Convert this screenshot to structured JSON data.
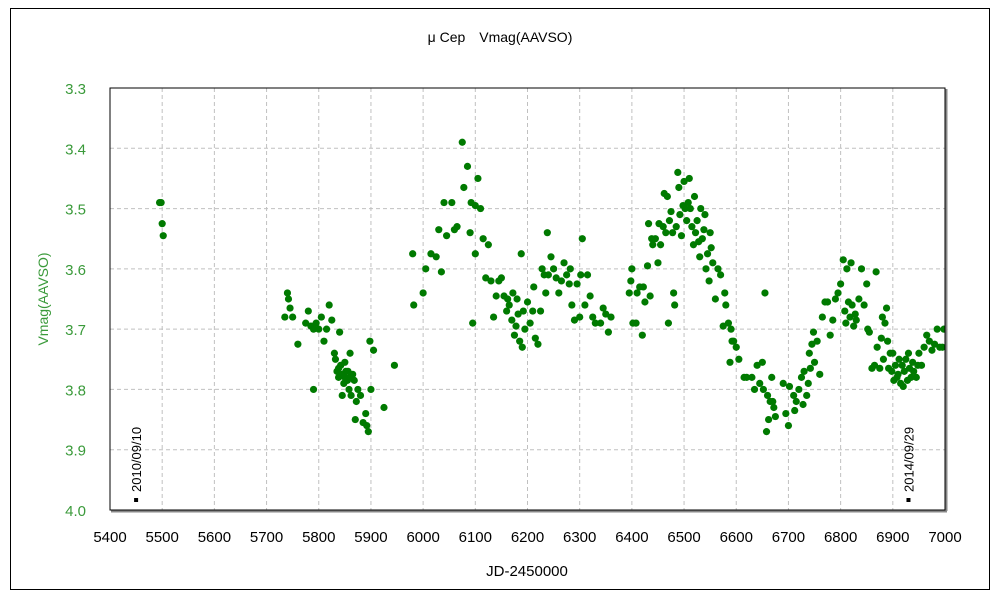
{
  "chart_data": {
    "type": "scatter",
    "title": "μ Cep　Vmag(AAVSO)",
    "xlabel": "JD-2450000",
    "ylabel": "Vmag(AAVSO)",
    "xlim": [
      5400,
      7000
    ],
    "ylim": [
      3.3,
      4.0
    ],
    "y_inverted": true,
    "grid": true,
    "x_ticks": [
      "5400",
      "5500",
      "5600",
      "5700",
      "5800",
      "5900",
      "6000",
      "6100",
      "6200",
      "6300",
      "6400",
      "6500",
      "6600",
      "6700",
      "6800",
      "6900",
      "7000"
    ],
    "y_ticks": [
      "3.3",
      "3.4",
      "3.5",
      "3.6",
      "3.7",
      "3.8",
      "3.9",
      "4.0"
    ],
    "colors": {
      "points": "#007a00",
      "y_axis_text": "#3a9a3a",
      "grid": "#c0c0c0"
    },
    "annotations": [
      {
        "x": 5450,
        "text": "2010/09/10"
      },
      {
        "x": 6930,
        "text": "2014/09/29"
      }
    ],
    "points": [
      [
        5495,
        3.49
      ],
      [
        5498,
        3.49
      ],
      [
        5500,
        3.525
      ],
      [
        5502,
        3.545
      ],
      [
        5735,
        3.68
      ],
      [
        5740,
        3.64
      ],
      [
        5742,
        3.65
      ],
      [
        5745,
        3.665
      ],
      [
        5750,
        3.68
      ],
      [
        5760,
        3.725
      ],
      [
        5775,
        3.69
      ],
      [
        5780,
        3.67
      ],
      [
        5785,
        3.695
      ],
      [
        5790,
        3.7
      ],
      [
        5795,
        3.69
      ],
      [
        5790,
        3.8
      ],
      [
        5800,
        3.7
      ],
      [
        5805,
        3.68
      ],
      [
        5810,
        3.72
      ],
      [
        5815,
        3.7
      ],
      [
        5820,
        3.66
      ],
      [
        5825,
        3.685
      ],
      [
        5830,
        3.74
      ],
      [
        5832,
        3.75
      ],
      [
        5835,
        3.77
      ],
      [
        5838,
        3.78
      ],
      [
        5840,
        3.705
      ],
      [
        5842,
        3.76
      ],
      [
        5845,
        3.775
      ],
      [
        5848,
        3.79
      ],
      [
        5850,
        3.755
      ],
      [
        5852,
        3.77
      ],
      [
        5855,
        3.785
      ],
      [
        5858,
        3.8
      ],
      [
        5860,
        3.78
      ],
      [
        5862,
        3.81
      ],
      [
        5865,
        3.775
      ],
      [
        5868,
        3.785
      ],
      [
        5870,
        3.85
      ],
      [
        5872,
        3.82
      ],
      [
        5875,
        3.8
      ],
      [
        5880,
        3.81
      ],
      [
        5885,
        3.855
      ],
      [
        5890,
        3.84
      ],
      [
        5892,
        3.86
      ],
      [
        5895,
        3.87
      ],
      [
        5898,
        3.72
      ],
      [
        5900,
        3.8
      ],
      [
        5905,
        3.735
      ],
      [
        5925,
        3.83
      ],
      [
        5945,
        3.76
      ],
      [
        5860,
        3.74
      ],
      [
        5845,
        3.81
      ],
      [
        5838,
        3.765
      ],
      [
        5850,
        3.78
      ],
      [
        5856,
        3.77
      ],
      [
        5980,
        3.575
      ],
      [
        5982,
        3.66
      ],
      [
        6000,
        3.64
      ],
      [
        6005,
        3.6
      ],
      [
        6015,
        3.575
      ],
      [
        6025,
        3.58
      ],
      [
        6030,
        3.535
      ],
      [
        6035,
        3.605
      ],
      [
        6040,
        3.49
      ],
      [
        6045,
        3.545
      ],
      [
        6055,
        3.49
      ],
      [
        6060,
        3.535
      ],
      [
        6065,
        3.53
      ],
      [
        6075,
        3.39
      ],
      [
        6078,
        3.465
      ],
      [
        6085,
        3.43
      ],
      [
        6090,
        3.54
      ],
      [
        6092,
        3.49
      ],
      [
        6095,
        3.69
      ],
      [
        6100,
        3.495
      ],
      [
        6105,
        3.45
      ],
      [
        6110,
        3.5
      ],
      [
        6115,
        3.55
      ],
      [
        6120,
        3.615
      ],
      [
        6125,
        3.56
      ],
      [
        6100,
        3.575
      ],
      [
        6130,
        3.62
      ],
      [
        6135,
        3.68
      ],
      [
        6140,
        3.645
      ],
      [
        6145,
        3.62
      ],
      [
        6150,
        3.615
      ],
      [
        6155,
        3.645
      ],
      [
        6160,
        3.67
      ],
      [
        6162,
        3.65
      ],
      [
        6165,
        3.66
      ],
      [
        6170,
        3.685
      ],
      [
        6172,
        3.64
      ],
      [
        6175,
        3.71
      ],
      [
        6178,
        3.695
      ],
      [
        6180,
        3.65
      ],
      [
        6182,
        3.675
      ],
      [
        6185,
        3.72
      ],
      [
        6188,
        3.575
      ],
      [
        6190,
        3.73
      ],
      [
        6192,
        3.67
      ],
      [
        6195,
        3.7
      ],
      [
        6200,
        3.655
      ],
      [
        6205,
        3.69
      ],
      [
        6210,
        3.67
      ],
      [
        6212,
        3.63
      ],
      [
        6215,
        3.715
      ],
      [
        6220,
        3.725
      ],
      [
        6225,
        3.67
      ],
      [
        6228,
        3.6
      ],
      [
        6232,
        3.61
      ],
      [
        6235,
        3.64
      ],
      [
        6238,
        3.54
      ],
      [
        6240,
        3.61
      ],
      [
        6245,
        3.58
      ],
      [
        6250,
        3.6
      ],
      [
        6255,
        3.615
      ],
      [
        6260,
        3.64
      ],
      [
        6265,
        3.62
      ],
      [
        6270,
        3.59
      ],
      [
        6275,
        3.61
      ],
      [
        6280,
        3.625
      ],
      [
        6282,
        3.6
      ],
      [
        6285,
        3.66
      ],
      [
        6290,
        3.685
      ],
      [
        6295,
        3.625
      ],
      [
        6300,
        3.68
      ],
      [
        6302,
        3.61
      ],
      [
        6305,
        3.55
      ],
      [
        6310,
        3.66
      ],
      [
        6315,
        3.61
      ],
      [
        6320,
        3.645
      ],
      [
        6325,
        3.68
      ],
      [
        6330,
        3.69
      ],
      [
        6340,
        3.69
      ],
      [
        6345,
        3.665
      ],
      [
        6350,
        3.675
      ],
      [
        6355,
        3.705
      ],
      [
        6360,
        3.68
      ],
      [
        6395,
        3.64
      ],
      [
        6398,
        3.62
      ],
      [
        6400,
        3.6
      ],
      [
        6402,
        3.69
      ],
      [
        6408,
        3.69
      ],
      [
        6410,
        3.64
      ],
      [
        6415,
        3.63
      ],
      [
        6420,
        3.71
      ],
      [
        6422,
        3.63
      ],
      [
        6425,
        3.655
      ],
      [
        6430,
        3.595
      ],
      [
        6432,
        3.525
      ],
      [
        6435,
        3.645
      ],
      [
        6438,
        3.55
      ],
      [
        6440,
        3.56
      ],
      [
        6445,
        3.55
      ],
      [
        6450,
        3.59
      ],
      [
        6452,
        3.525
      ],
      [
        6455,
        3.56
      ],
      [
        6460,
        3.53
      ],
      [
        6462,
        3.475
      ],
      [
        6465,
        3.54
      ],
      [
        6468,
        3.48
      ],
      [
        6470,
        3.69
      ],
      [
        6472,
        3.52
      ],
      [
        6475,
        3.505
      ],
      [
        6478,
        3.54
      ],
      [
        6480,
        3.64
      ],
      [
        6482,
        3.66
      ],
      [
        6485,
        3.53
      ],
      [
        6488,
        3.44
      ],
      [
        6490,
        3.465
      ],
      [
        6492,
        3.51
      ],
      [
        6495,
        3.545
      ],
      [
        6498,
        3.495
      ],
      [
        6500,
        3.455
      ],
      [
        6502,
        3.5
      ],
      [
        6505,
        3.52
      ],
      [
        6508,
        3.49
      ],
      [
        6510,
        3.45
      ],
      [
        6512,
        3.5
      ],
      [
        6515,
        3.53
      ],
      [
        6518,
        3.56
      ],
      [
        6520,
        3.48
      ],
      [
        6522,
        3.54
      ],
      [
        6525,
        3.52
      ],
      [
        6528,
        3.555
      ],
      [
        6530,
        3.58
      ],
      [
        6532,
        3.5
      ],
      [
        6535,
        3.55
      ],
      [
        6538,
        3.535
      ],
      [
        6540,
        3.51
      ],
      [
        6542,
        3.6
      ],
      [
        6545,
        3.575
      ],
      [
        6548,
        3.62
      ],
      [
        6550,
        3.54
      ],
      [
        6552,
        3.565
      ],
      [
        6555,
        3.59
      ],
      [
        6560,
        3.65
      ],
      [
        6565,
        3.6
      ],
      [
        6570,
        3.61
      ],
      [
        6575,
        3.695
      ],
      [
        6578,
        3.64
      ],
      [
        6580,
        3.66
      ],
      [
        6585,
        3.69
      ],
      [
        6588,
        3.755
      ],
      [
        6590,
        3.7
      ],
      [
        6592,
        3.72
      ],
      [
        6595,
        3.72
      ],
      [
        6600,
        3.73
      ],
      [
        6605,
        3.75
      ],
      [
        6615,
        3.78
      ],
      [
        6620,
        3.78
      ],
      [
        6630,
        3.78
      ],
      [
        6635,
        3.8
      ],
      [
        6640,
        3.76
      ],
      [
        6645,
        3.79
      ],
      [
        6650,
        3.755
      ],
      [
        6652,
        3.8
      ],
      [
        6655,
        3.64
      ],
      [
        6658,
        3.87
      ],
      [
        6660,
        3.81
      ],
      [
        6662,
        3.85
      ],
      [
        6665,
        3.82
      ],
      [
        6668,
        3.78
      ],
      [
        6670,
        3.82
      ],
      [
        6672,
        3.83
      ],
      [
        6675,
        3.845
      ],
      [
        6690,
        3.79
      ],
      [
        6695,
        3.84
      ],
      [
        6700,
        3.86
      ],
      [
        6702,
        3.795
      ],
      [
        6710,
        3.81
      ],
      [
        6712,
        3.835
      ],
      [
        6715,
        3.82
      ],
      [
        6720,
        3.8
      ],
      [
        6725,
        3.78
      ],
      [
        6728,
        3.825
      ],
      [
        6730,
        3.77
      ],
      [
        6735,
        3.81
      ],
      [
        6738,
        3.79
      ],
      [
        6740,
        3.74
      ],
      [
        6742,
        3.765
      ],
      [
        6745,
        3.725
      ],
      [
        6748,
        3.705
      ],
      [
        6750,
        3.755
      ],
      [
        6755,
        3.72
      ],
      [
        6760,
        3.775
      ],
      [
        6765,
        3.68
      ],
      [
        6770,
        3.655
      ],
      [
        6775,
        3.655
      ],
      [
        6780,
        3.71
      ],
      [
        6785,
        3.685
      ],
      [
        6790,
        3.65
      ],
      [
        6795,
        3.64
      ],
      [
        6800,
        3.625
      ],
      [
        6805,
        3.585
      ],
      [
        6808,
        3.67
      ],
      [
        6810,
        3.69
      ],
      [
        6812,
        3.6
      ],
      [
        6815,
        3.655
      ],
      [
        6818,
        3.68
      ],
      [
        6820,
        3.59
      ],
      [
        6822,
        3.66
      ],
      [
        6825,
        3.695
      ],
      [
        6828,
        3.675
      ],
      [
        6830,
        3.685
      ],
      [
        6835,
        3.65
      ],
      [
        6840,
        3.6
      ],
      [
        6845,
        3.66
      ],
      [
        6850,
        3.625
      ],
      [
        6852,
        3.7
      ],
      [
        6855,
        3.705
      ],
      [
        6860,
        3.765
      ],
      [
        6865,
        3.76
      ],
      [
        6868,
        3.605
      ],
      [
        6870,
        3.73
      ],
      [
        6875,
        3.765
      ],
      [
        6878,
        3.715
      ],
      [
        6880,
        3.68
      ],
      [
        6882,
        3.75
      ],
      [
        6885,
        3.69
      ],
      [
        6888,
        3.665
      ],
      [
        6890,
        3.72
      ],
      [
        6892,
        3.765
      ],
      [
        6895,
        3.74
      ],
      [
        6898,
        3.77
      ],
      [
        6900,
        3.74
      ],
      [
        6902,
        3.785
      ],
      [
        6905,
        3.76
      ],
      [
        6908,
        3.78
      ],
      [
        6910,
        3.775
      ],
      [
        6912,
        3.75
      ],
      [
        6915,
        3.79
      ],
      [
        6918,
        3.76
      ],
      [
        6920,
        3.795
      ],
      [
        6922,
        3.77
      ],
      [
        6925,
        3.75
      ],
      [
        6928,
        3.785
      ],
      [
        6930,
        3.74
      ],
      [
        6932,
        3.765
      ],
      [
        6935,
        3.78
      ],
      [
        6938,
        3.755
      ],
      [
        6940,
        3.77
      ],
      [
        6945,
        3.78
      ],
      [
        6948,
        3.76
      ],
      [
        6950,
        3.74
      ],
      [
        6955,
        3.76
      ],
      [
        6960,
        3.73
      ],
      [
        6965,
        3.71
      ],
      [
        6970,
        3.72
      ],
      [
        6975,
        3.735
      ],
      [
        6980,
        3.725
      ],
      [
        6985,
        3.7
      ],
      [
        6990,
        3.73
      ],
      [
        6995,
        3.73
      ],
      [
        6998,
        3.7
      ]
    ]
  }
}
